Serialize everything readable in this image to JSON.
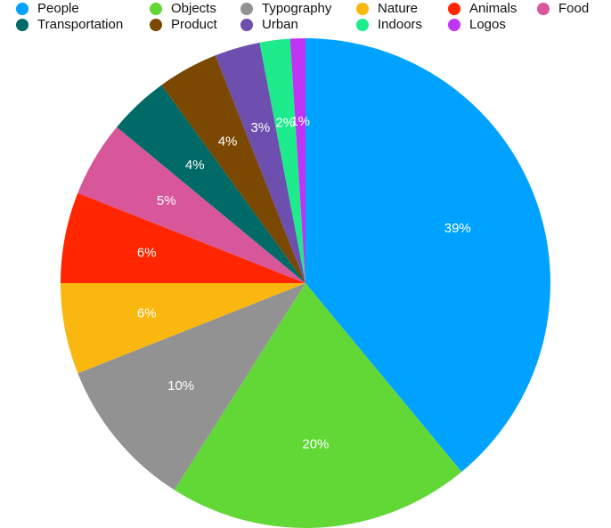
{
  "chart_data": {
    "type": "pie",
    "start_angle_deg": 90,
    "direction": "clockwise",
    "legend_position": "top",
    "slices": [
      {
        "label": "People",
        "value": 39,
        "display": "39%",
        "color": "#00A2FF"
      },
      {
        "label": "Objects",
        "value": 20,
        "display": "20%",
        "color": "#61D836"
      },
      {
        "label": "Typography",
        "value": 10,
        "display": "10%",
        "color": "#929292"
      },
      {
        "label": "Nature",
        "value": 6,
        "display": "6%",
        "color": "#FAB710"
      },
      {
        "label": "Animals",
        "value": 6,
        "display": "6%",
        "color": "#FF2600"
      },
      {
        "label": "Food",
        "value": 5,
        "display": "5%",
        "color": "#D7579A"
      },
      {
        "label": "Transportation",
        "value": 4,
        "display": "4%",
        "color": "#006A67"
      },
      {
        "label": "Product",
        "value": 4,
        "display": "4%",
        "color": "#7A4800"
      },
      {
        "label": "Urban",
        "value": 3,
        "display": "3%",
        "color": "#6D4FAF"
      },
      {
        "label": "Indoors",
        "value": 2,
        "display": "2%",
        "color": "#1DEB8C"
      },
      {
        "label": "Logos",
        "value": 1,
        "display": "1%",
        "color": "#BF34F5"
      }
    ],
    "legend_order": [
      "People",
      "Objects",
      "Typography",
      "Nature",
      "Animals",
      "Food",
      "Transportation",
      "Product",
      "Urban",
      "Indoors",
      "Logos"
    ]
  }
}
